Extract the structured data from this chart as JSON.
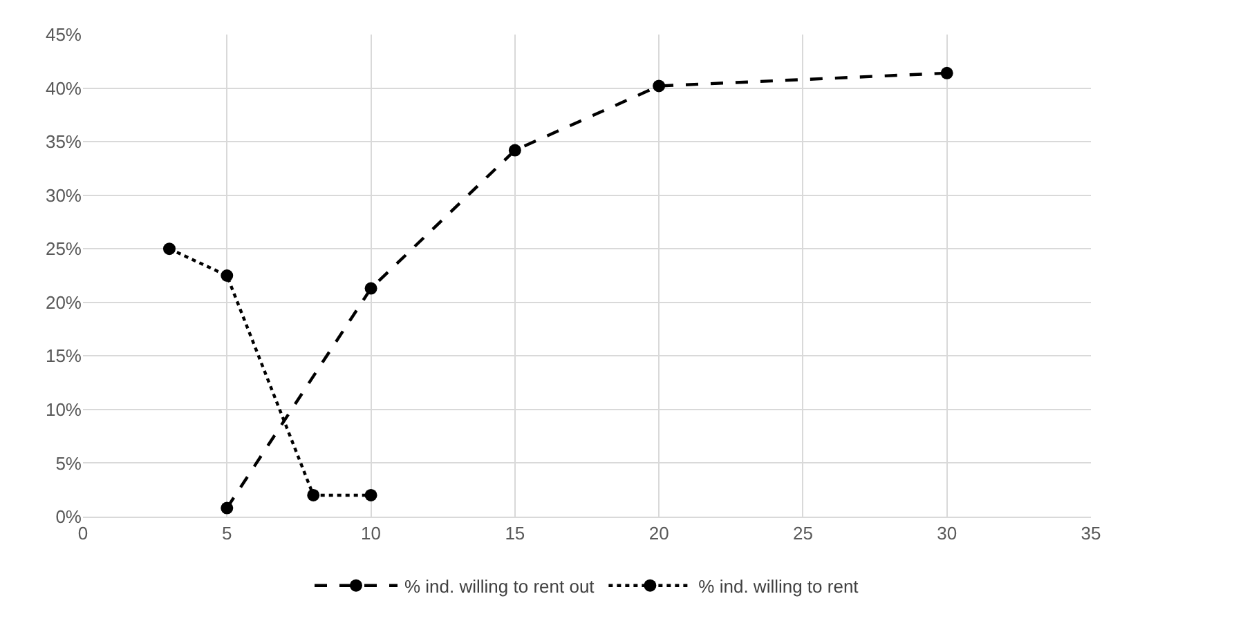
{
  "chart_data": {
    "type": "line",
    "series": [
      {
        "name": "% ind. willing to rent out",
        "color": "#000000",
        "line_style": "dashed",
        "x": [
          5,
          10,
          15,
          20,
          30
        ],
        "values": [
          0.8,
          21.3,
          34.2,
          40.2,
          41.4
        ]
      },
      {
        "name": "% ind. willing to rent",
        "color": "#000000",
        "line_style": "dotted",
        "x": [
          3,
          5,
          8,
          10
        ],
        "values": [
          25,
          22.5,
          2,
          2
        ]
      }
    ],
    "xlim": [
      0,
      35
    ],
    "xticks": [
      0,
      5,
      10,
      15,
      20,
      25,
      30,
      35
    ],
    "ylim": [
      0,
      45
    ],
    "yticks": [
      {
        "value": 0,
        "label": "0%"
      },
      {
        "value": 5,
        "label": "5%"
      },
      {
        "value": 10,
        "label": "10%"
      },
      {
        "value": 15,
        "label": "15%"
      },
      {
        "value": 20,
        "label": "20%"
      },
      {
        "value": 25,
        "label": "25%"
      },
      {
        "value": 30,
        "label": "30%"
      },
      {
        "value": 35,
        "label": "35%"
      },
      {
        "value": 40,
        "label": "40%"
      },
      {
        "value": 45,
        "label": "45%"
      }
    ],
    "grid": true,
    "legend": "bottom",
    "marker": "circle"
  }
}
